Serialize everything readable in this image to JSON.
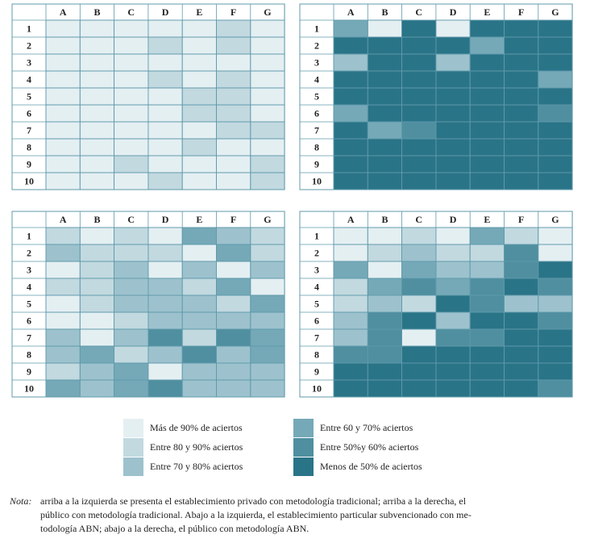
{
  "chart_data": [
    {
      "type": "heatmap",
      "categories": [
        "A",
        "B",
        "C",
        "D",
        "E",
        "F",
        "G"
      ],
      "rows": [
        1,
        2,
        3,
        4,
        5,
        6,
        7,
        8,
        9,
        10
      ],
      "values": [
        [
          0,
          0,
          0,
          0,
          0,
          1,
          0
        ],
        [
          0,
          0,
          0,
          1,
          0,
          1,
          0
        ],
        [
          0,
          0,
          0,
          0,
          0,
          0,
          0
        ],
        [
          0,
          0,
          0,
          1,
          0,
          1,
          0
        ],
        [
          0,
          0,
          0,
          0,
          1,
          1,
          0
        ],
        [
          0,
          0,
          0,
          0,
          1,
          1,
          0
        ],
        [
          0,
          0,
          0,
          0,
          0,
          1,
          1
        ],
        [
          0,
          0,
          0,
          0,
          1,
          0,
          0
        ],
        [
          0,
          0,
          1,
          0,
          0,
          0,
          1
        ],
        [
          0,
          0,
          0,
          1,
          0,
          0,
          1
        ]
      ]
    },
    {
      "type": "heatmap",
      "categories": [
        "A",
        "B",
        "C",
        "D",
        "E",
        "F",
        "G"
      ],
      "rows": [
        1,
        2,
        3,
        4,
        5,
        6,
        7,
        8,
        9,
        10
      ],
      "values": [
        [
          3,
          0,
          5,
          0,
          5,
          5,
          5
        ],
        [
          5,
          5,
          5,
          5,
          3,
          5,
          5
        ],
        [
          2,
          5,
          5,
          2,
          5,
          5,
          5
        ],
        [
          5,
          5,
          5,
          5,
          5,
          5,
          3
        ],
        [
          5,
          5,
          5,
          5,
          5,
          5,
          5
        ],
        [
          3,
          5,
          5,
          5,
          5,
          5,
          4
        ],
        [
          5,
          3,
          4,
          5,
          5,
          5,
          5
        ],
        [
          5,
          5,
          5,
          5,
          5,
          5,
          5
        ],
        [
          5,
          5,
          5,
          5,
          5,
          5,
          5
        ],
        [
          5,
          5,
          5,
          5,
          5,
          5,
          5
        ]
      ]
    },
    {
      "type": "heatmap",
      "categories": [
        "A",
        "B",
        "C",
        "D",
        "E",
        "F",
        "G"
      ],
      "rows": [
        1,
        2,
        3,
        4,
        5,
        6,
        7,
        8,
        9,
        10
      ],
      "values": [
        [
          1,
          0,
          1,
          0,
          3,
          2,
          1
        ],
        [
          2,
          1,
          1,
          1,
          0,
          3,
          1
        ],
        [
          0,
          1,
          2,
          0,
          2,
          0,
          2
        ],
        [
          1,
          1,
          2,
          2,
          1,
          3,
          0
        ],
        [
          0,
          1,
          2,
          2,
          2,
          1,
          3
        ],
        [
          0,
          0,
          1,
          2,
          2,
          2,
          2
        ],
        [
          2,
          0,
          2,
          4,
          1,
          4,
          3
        ],
        [
          2,
          3,
          1,
          2,
          4,
          2,
          3
        ],
        [
          1,
          2,
          3,
          0,
          2,
          2,
          2
        ],
        [
          3,
          2,
          3,
          4,
          2,
          2,
          2
        ]
      ]
    },
    {
      "type": "heatmap",
      "categories": [
        "A",
        "B",
        "C",
        "D",
        "E",
        "F",
        "G"
      ],
      "rows": [
        1,
        2,
        3,
        4,
        5,
        6,
        7,
        8,
        9,
        10
      ],
      "values": [
        [
          0,
          0,
          1,
          0,
          3,
          1,
          0
        ],
        [
          0,
          1,
          2,
          1,
          1,
          4,
          0
        ],
        [
          3,
          0,
          3,
          2,
          2,
          4,
          5
        ],
        [
          1,
          3,
          4,
          3,
          4,
          5,
          4
        ],
        [
          1,
          2,
          1,
          5,
          4,
          2,
          2
        ],
        [
          2,
          4,
          5,
          2,
          5,
          5,
          4
        ],
        [
          2,
          4,
          0,
          4,
          4,
          5,
          5
        ],
        [
          4,
          4,
          5,
          5,
          5,
          5,
          5
        ],
        [
          5,
          5,
          5,
          5,
          5,
          5,
          5
        ],
        [
          5,
          5,
          5,
          5,
          5,
          5,
          4
        ]
      ]
    }
  ],
  "legend": [
    {
      "label": "Más de 90% de aciertos",
      "color": "#e4eff2"
    },
    {
      "label": "Entre 80 y 90% aciertos",
      "color": "#c2d9e0"
    },
    {
      "label": "Entre 70 y 80% aciertos",
      "color": "#9dc2cd"
    },
    {
      "label": "Entre 60 y 70% aciertos",
      "color": "#75a9b8"
    },
    {
      "label": "Entre 50%y 60% aciertos",
      "color": "#4f8fa0"
    },
    {
      "label": "Menos de 50% de aciertos",
      "color": "#2a7488"
    }
  ],
  "note": {
    "label": "Nota:",
    "lines": [
      "arriba a la izquierda se presenta el establecimiento privado con metodología tradicional; arriba a la derecha, el",
      "público con metodología tradicional. Abajo a la izquierda, el establecimiento particular subvencionado con me-",
      "todología ABN; abajo a la derecha, el público con metodología ABN."
    ]
  }
}
